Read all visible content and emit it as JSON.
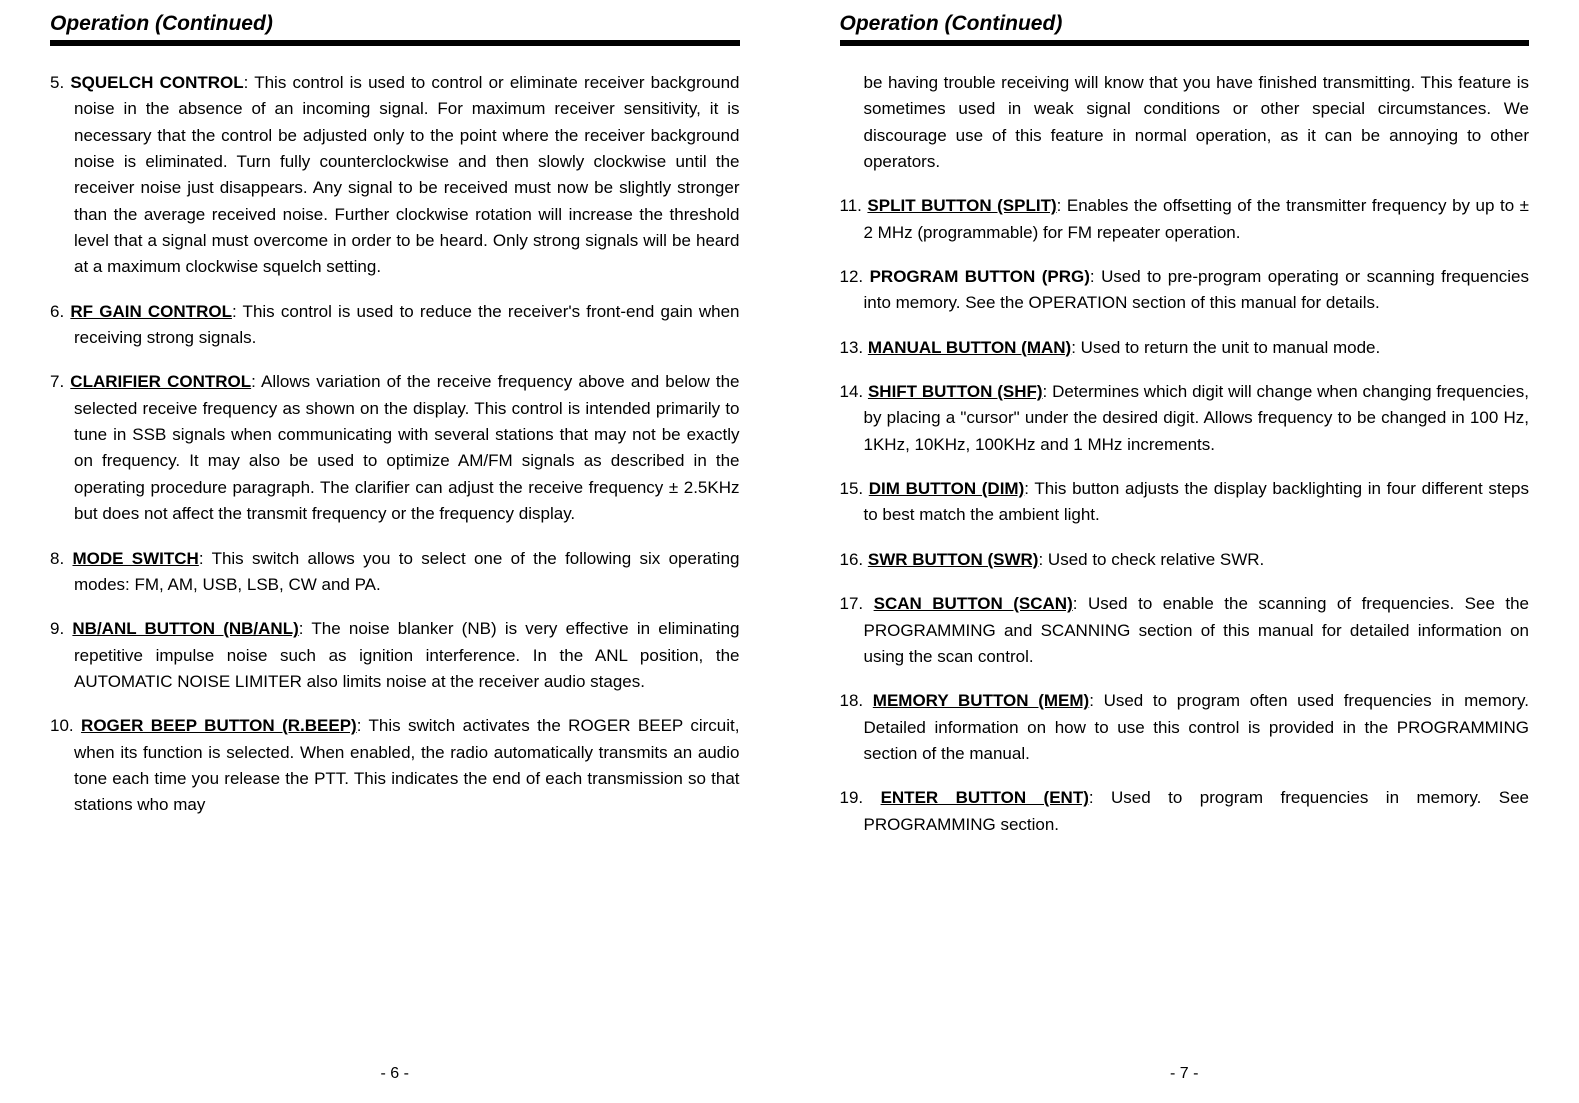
{
  "leftPage": {
    "header": "Operation  (Continued)",
    "footer": "- 6 -",
    "items": [
      {
        "num": "5.",
        "term": "SQUELCH CONTROL",
        "underline": false,
        "body": ": This control is used to control or eliminate receiver background noise in the absence of an incoming signal. For maximum receiver sensitivity, it is necessary that the control be adjusted only to the point where the receiver background noise is eliminated. Turn fully counterclockwise and then slowly clockwise until the receiver noise just disappears. Any signal to be received must now be slightly stronger than the average received noise. Further clockwise rotation will increase the threshold level that a signal must overcome in order to be heard. Only strong signals will be heard at a maximum clockwise squelch setting."
      },
      {
        "num": "6.",
        "term": "RF GAIN CONTROL",
        "underline": true,
        "body": ": This control is used to reduce the receiver's front-end gain when receiving strong signals."
      },
      {
        "num": "7.",
        "term": "CLARIFIER CONTROL",
        "underline": true,
        "body": ": Allows variation of the receive frequency above and below the selected receive frequency as shown on the display. This control is intended primarily to tune in SSB signals when communicating with several stations that may not be exactly on frequency. It may also be used to optimize AM/FM signals as described in the operating procedure paragraph. The clarifier can adjust the receive frequency ± 2.5KHz but does not affect the transmit frequency or the frequency display."
      },
      {
        "num": "8.",
        "term": "MODE SWITCH",
        "underline": true,
        "body": ": This switch allows you to select one of the following six operating modes: FM, AM, USB, LSB, CW and PA."
      },
      {
        "num": "9.",
        "term": "NB/ANL BUTTON (NB/ANL)",
        "underline": true,
        "body": ": The noise blanker (NB) is very effective in eliminating repetitive impulse noise such as ignition interference. In the ANL position, the AUTOMATIC NOISE LIMITER also limits noise at the receiver audio stages."
      },
      {
        "num": "10.",
        "term": "ROGER BEEP BUTTON (R.BEEP)",
        "underline": true,
        "body": ": This switch activates the ROGER BEEP circuit, when its function is selected. When enabled, the radio automatically transmits an audio tone each time you release the PTT. This indicates the end of each transmission so that stations who may"
      }
    ]
  },
  "rightPage": {
    "header": "Operation  (Continued)",
    "footer": "- 7 -",
    "leadIn": "be having trouble receiving will know that you have finished transmitting. This feature is sometimes used in weak signal conditions or other special circumstances.  We discourage use of this feature in normal operation, as it can be annoying to other operators.",
    "items": [
      {
        "num": "11.",
        "term": "SPLIT BUTTON (SPLIT)",
        "underline": true,
        "body": ": Enables the offsetting of the transmitter frequency by up to ±  2 MHz (programmable) for FM repeater operation."
      },
      {
        "num": "12.",
        "term": "PROGRAM BUTTON (PRG)",
        "underline": false,
        "body": ": Used to pre-program operating or scanning frequencies into memory. See the OPERATION section of this manual for details."
      },
      {
        "num": "13.",
        "term": "MANUAL BUTTON (MAN)",
        "underline": true,
        "body": ": Used to return the unit to manual mode."
      },
      {
        "num": "14.",
        "term": "SHIFT BUTTON (SHF)",
        "underline": true,
        "body": ": Determines which digit will change when changing frequencies, by placing a \"cursor\" under the desired digit. Allows frequency to be changed in 100 Hz, 1KHz, 10KHz, 100KHz and 1 MHz increments."
      },
      {
        "num": "15.",
        "term": "DIM BUTTON (DIM)",
        "underline": true,
        "body": ": This button adjusts the display backlighting in four different steps to best match the ambient light."
      },
      {
        "num": "16.",
        "term": "SWR BUTTON (SWR)",
        "underline": true,
        "body": ": Used to check relative SWR."
      },
      {
        "num": "17.",
        "term": "SCAN BUTTON (SCAN)",
        "underline": true,
        "body": ": Used to enable the scanning of frequencies. See the PROGRAMMING and SCANNING section of this manual for detailed information on using the scan control."
      },
      {
        "num": "18.",
        "term": "MEMORY BUTTON (MEM)",
        "underline": true,
        "body": ": Used to program often used frequencies in memory.  Detailed information on how to use this control is provided in the PROGRAMMING section of the manual."
      },
      {
        "num": "19.",
        "term": "ENTER BUTTON (ENT)",
        "underline": true,
        "body": ": Used to program frequencies in memory. See PROGRAMMING section."
      }
    ]
  }
}
